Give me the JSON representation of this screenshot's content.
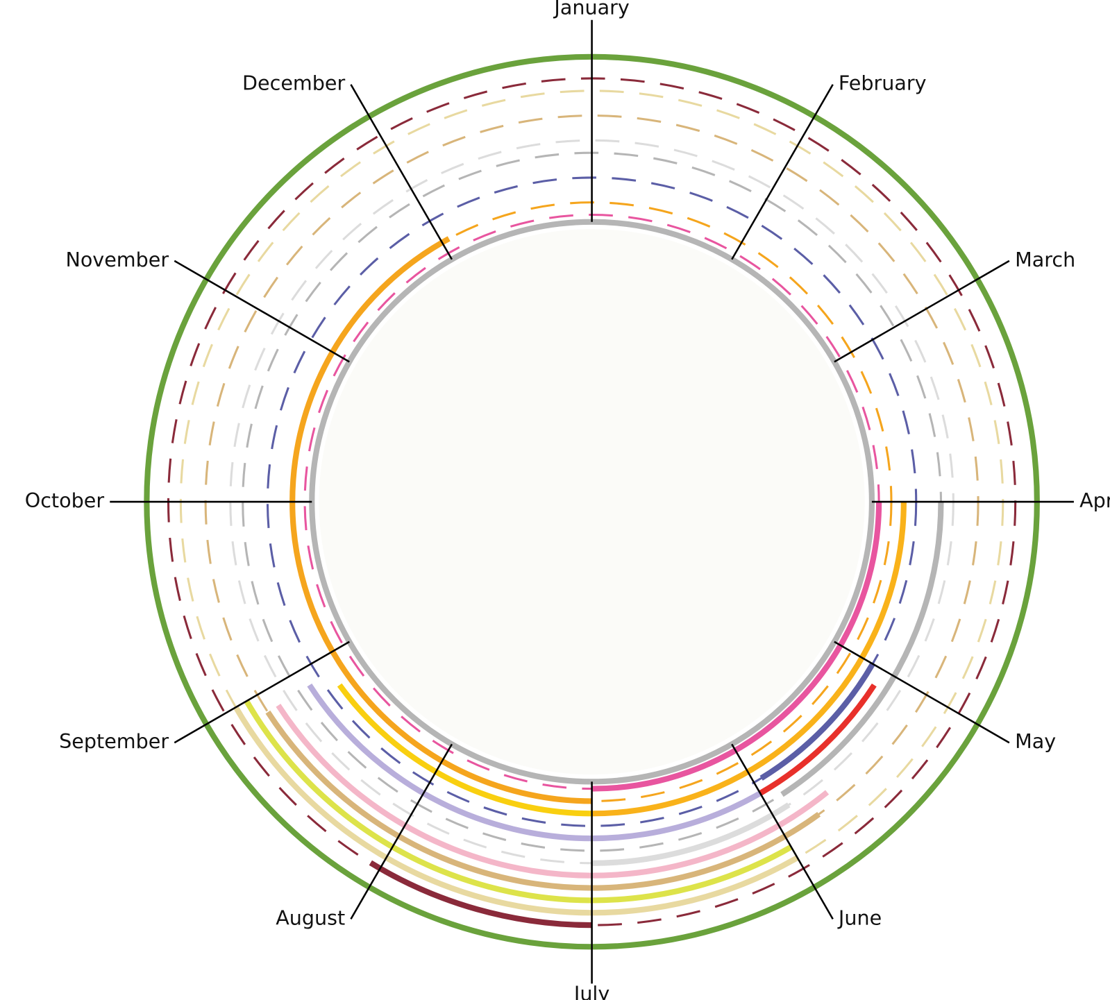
{
  "months": [
    "January",
    "February",
    "March",
    "April",
    "May",
    "June",
    "July",
    "August",
    "September",
    "October",
    "November",
    "December"
  ],
  "rings": [
    {
      "dash": "#e8559f",
      "segments": [
        {
          "color": "#e8559f",
          "from": 3,
          "to": 6
        }
      ]
    },
    {
      "dash": "#f5a51d",
      "segments": [
        {
          "color": "#f5a51d",
          "from": 6,
          "to": 11.05
        }
      ]
    },
    {
      "segments": [
        {
          "color": "#f9b21a",
          "from": 3,
          "to": 6
        },
        {
          "color": "#f9cf10",
          "from": 6,
          "to": 7.8
        }
      ]
    },
    {
      "dash": "#5b5ea6",
      "segments": [
        {
          "color": "#5b5ea6",
          "from": 4,
          "to": 4.95
        }
      ]
    },
    {
      "segments": [
        {
          "color": "#e8302a",
          "from": 4.1,
          "to": 5
        },
        {
          "color": "#b8aedb",
          "from": 5,
          "to": 7.9
        }
      ]
    },
    {
      "dash": "#b5b5b5",
      "segments": [
        {
          "color": "#b5b5b5",
          "from": 3,
          "to": 4.9
        }
      ]
    },
    {
      "dash": "#dcdcdc",
      "segments": [
        {
          "color": "#dcdcdc",
          "from": 4.9,
          "to": 6
        }
      ]
    },
    {
      "segments": [
        {
          "color": "#f4b6c8",
          "from": 4.7,
          "to": 7.9
        }
      ]
    },
    {
      "dash": "#d8b57a",
      "segments": [
        {
          "color": "#d8b57a",
          "from": 4.8,
          "to": 7.9
        }
      ]
    },
    {
      "segments": [
        {
          "color": "#dde34a",
          "from": 5,
          "to": 8
        }
      ]
    },
    {
      "dash": "#e8d9a0",
      "segments": [
        {
          "color": "#e8d9a0",
          "from": 5,
          "to": 8
        }
      ]
    },
    {
      "dash": "#8a2a3a",
      "segments": [
        {
          "color": "#8a2a3a",
          "from": 6,
          "to": 7.05
        }
      ]
    }
  ]
}
